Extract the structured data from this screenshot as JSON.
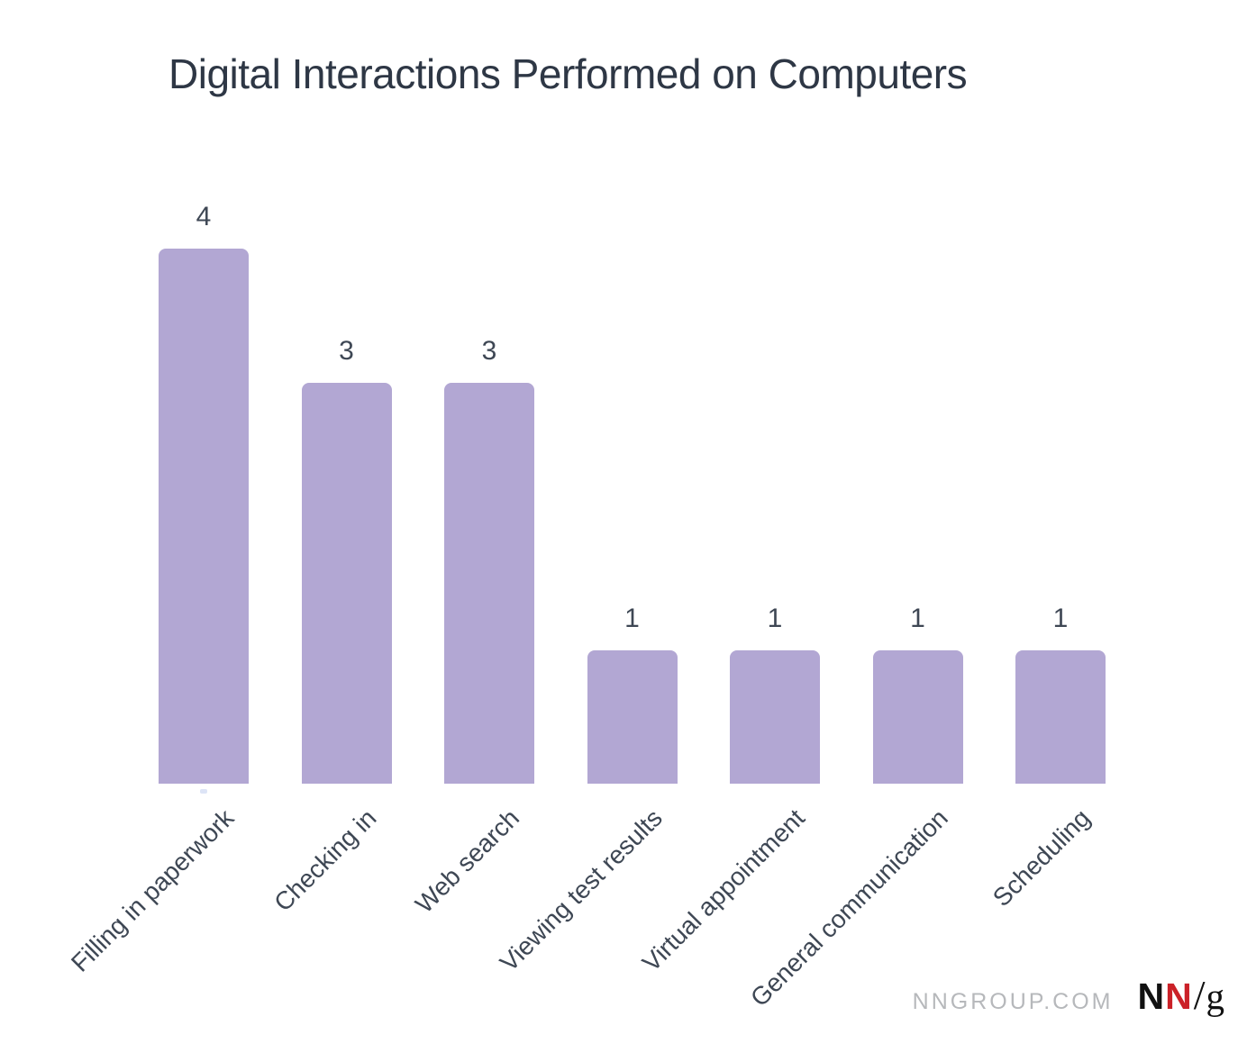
{
  "title": "Digital Interactions Performed on Computers",
  "chart_data": {
    "type": "bar",
    "title": "Digital Interactions Performed on Computers",
    "categories": [
      "Filling in paperwork",
      "Checking in",
      "Web search",
      "Viewing test results",
      "Virtual appointment",
      "General communication",
      "Scheduling"
    ],
    "values": [
      4,
      3,
      3,
      1,
      1,
      1,
      1
    ],
    "xlabel": "",
    "ylabel": "",
    "ylim": [
      0,
      4
    ],
    "grid": false,
    "legend": false,
    "value_labels_shown": true,
    "x_label_rotation_deg": -45,
    "bar_color": "#b2a7d3",
    "value_label_color": "#3e4754",
    "axis_label_color": "#3e4754",
    "title_color": "#2e3745"
  },
  "footer": {
    "watermark": "NNGROUP.COM",
    "logo": {
      "n1": "N",
      "n2": "N",
      "slash": "/",
      "g": "g",
      "black": "#111111",
      "red": "#cb2128"
    }
  }
}
